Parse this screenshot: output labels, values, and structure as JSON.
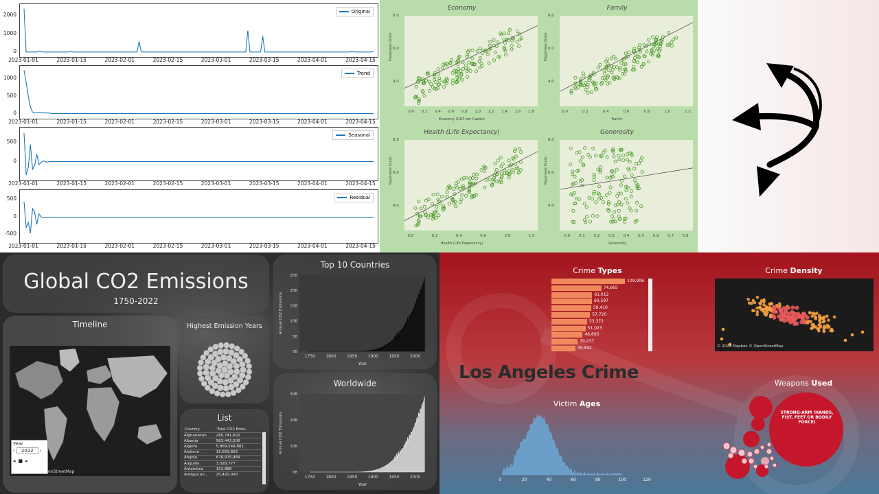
{
  "decomposition": {
    "x_ticks": [
      "2023-01-01",
      "2023-01-15",
      "2023-02-01",
      "2023-02-15",
      "2023-03-01",
      "2023-03-15",
      "2023-04-01",
      "2023-04-15"
    ],
    "panels": [
      {
        "name": "Original",
        "y_ticks": [
          "2000",
          "1000",
          "0"
        ],
        "ymin": -100,
        "ymax": 2500,
        "values": [
          2400,
          20,
          20,
          20,
          20,
          20,
          20,
          80,
          40,
          20,
          20,
          20,
          20,
          20,
          20,
          20,
          20,
          20,
          20,
          20,
          20,
          20,
          60,
          20,
          20,
          20,
          20,
          20,
          20,
          20,
          20,
          20,
          20,
          20,
          20,
          20,
          20,
          20,
          20,
          20,
          20,
          20,
          20,
          20,
          20,
          20,
          20,
          20,
          20,
          20,
          20,
          20,
          20,
          20,
          600,
          20,
          20,
          20,
          20,
          20,
          20,
          20,
          20,
          20,
          20,
          20,
          20,
          20,
          20,
          20,
          20,
          20,
          20,
          20,
          20,
          20,
          20,
          20,
          20,
          20,
          20,
          20,
          20,
          20,
          20,
          20,
          20,
          20,
          20,
          20,
          20,
          20,
          20,
          20,
          20,
          20,
          20,
          20,
          20,
          20,
          20,
          20,
          20,
          20,
          20,
          1200,
          20,
          20,
          20,
          20,
          20,
          20,
          900,
          20,
          20,
          20,
          20,
          20,
          20,
          20,
          20,
          20,
          20,
          20,
          20,
          20,
          20,
          20,
          20,
          20,
          20,
          20,
          20,
          20,
          20,
          20,
          20,
          20,
          20,
          20,
          20,
          20,
          20,
          20,
          20,
          20,
          20,
          20,
          20,
          20,
          20,
          20,
          20,
          20,
          60,
          20,
          20,
          20,
          20,
          20,
          20,
          20,
          20,
          20,
          60
        ]
      },
      {
        "name": "Trend",
        "y_ticks": [
          "1000",
          "500",
          "0"
        ],
        "ymin": -60,
        "ymax": 1300,
        "values": [
          1250,
          900,
          500,
          200,
          50,
          20,
          40,
          30,
          50,
          40,
          20,
          30,
          20,
          10,
          10,
          10,
          10,
          10,
          10,
          10,
          10,
          10,
          10,
          10,
          10,
          10,
          10,
          10,
          10,
          10,
          10,
          10,
          10,
          10,
          10,
          10,
          10,
          10,
          10,
          10,
          10,
          10,
          10,
          10,
          10,
          10,
          10,
          10,
          10,
          10,
          10,
          10,
          10,
          10,
          10,
          10,
          10,
          10,
          10,
          10,
          10,
          10,
          10,
          10,
          10,
          10,
          10,
          10,
          10,
          10,
          10,
          10,
          10,
          10,
          10,
          10,
          10,
          10,
          10,
          10,
          10,
          10,
          10,
          10,
          10,
          10,
          10,
          10,
          10,
          10,
          10,
          10,
          10,
          10,
          10,
          10,
          10,
          10,
          10,
          10,
          10,
          10,
          10,
          10,
          10,
          10,
          10,
          10,
          10,
          10,
          10,
          10,
          10,
          10,
          10,
          10,
          10,
          10,
          10,
          10,
          10,
          10,
          10,
          10,
          10,
          10,
          10,
          10,
          10,
          10,
          10,
          10,
          10,
          10,
          10,
          10,
          10,
          10,
          10,
          10,
          10,
          10,
          10,
          10,
          10,
          10,
          10,
          10,
          10,
          10,
          10,
          10,
          10,
          10,
          10,
          10,
          10,
          10,
          10,
          10,
          10,
          10,
          10,
          10,
          10
        ]
      },
      {
        "name": "Seasonal",
        "y_ticks": [
          "500",
          "0"
        ],
        "ymin": -420,
        "ymax": 820,
        "values": [
          750,
          -350,
          -150,
          450,
          -200,
          -100,
          200,
          -80,
          -20,
          20,
          0,
          -10,
          0,
          0,
          0,
          0,
          0,
          0,
          0,
          0,
          0,
          0,
          0,
          0,
          0,
          0,
          0,
          0,
          0,
          0,
          0,
          0,
          0,
          0,
          0,
          0,
          0,
          0,
          0,
          0,
          0,
          0,
          0,
          0,
          0,
          0,
          0,
          0,
          0,
          0,
          0,
          0,
          0,
          0,
          0,
          0,
          0,
          0,
          0,
          0,
          0,
          0,
          0,
          0,
          0,
          0,
          0,
          0,
          0,
          0,
          0,
          0,
          0,
          0,
          0,
          0,
          0,
          0,
          0,
          0,
          0,
          0,
          0,
          0,
          0,
          0,
          0,
          0,
          0,
          0,
          0,
          0,
          0,
          0,
          0,
          0,
          0,
          0,
          0,
          0,
          0,
          0,
          0,
          0,
          0,
          0,
          0,
          0,
          0,
          0,
          0,
          0,
          0,
          0,
          0,
          0,
          0,
          0,
          0,
          0,
          0,
          0,
          0,
          0,
          0,
          0,
          0,
          0,
          0,
          0,
          0,
          0,
          0,
          0,
          0,
          0,
          0,
          0,
          0,
          0,
          0,
          0,
          0,
          0,
          0,
          0,
          0,
          0,
          0,
          0,
          0,
          0,
          0,
          0,
          0,
          0,
          0,
          0,
          0,
          0,
          0,
          0,
          0,
          0,
          0
        ]
      },
      {
        "name": "Residual",
        "y_ticks": [
          "500",
          "0",
          "-500"
        ],
        "ymin": -650,
        "ymax": 700,
        "values": [
          450,
          -300,
          -150,
          -450,
          250,
          150,
          -200,
          100,
          20,
          -20,
          10,
          -10,
          10,
          0,
          0,
          0,
          0,
          0,
          0,
          0,
          0,
          0,
          0,
          0,
          0,
          0,
          0,
          0,
          0,
          0,
          0,
          0,
          0,
          0,
          0,
          0,
          0,
          0,
          0,
          0,
          0,
          0,
          0,
          0,
          0,
          0,
          0,
          0,
          0,
          0,
          0,
          0,
          0,
          0,
          0,
          0,
          0,
          0,
          0,
          0,
          0,
          0,
          0,
          0,
          0,
          0,
          0,
          0,
          0,
          0,
          0,
          0,
          0,
          0,
          0,
          0,
          0,
          0,
          0,
          0,
          0,
          0,
          0,
          0,
          0,
          0,
          0,
          0,
          0,
          0,
          0,
          0,
          0,
          0,
          0,
          0,
          0,
          0,
          0,
          0,
          0,
          0,
          0,
          0,
          0,
          0,
          0,
          0,
          0,
          0,
          0,
          0,
          0,
          0,
          0,
          0,
          0,
          0,
          0,
          0,
          0,
          0,
          0,
          0,
          0,
          0,
          0,
          0,
          0,
          0,
          0,
          0,
          0,
          0,
          0,
          0,
          0,
          0,
          0,
          0,
          0,
          0,
          0,
          0,
          0,
          0,
          0,
          0,
          0,
          0,
          0,
          0,
          0,
          0,
          0,
          0,
          0,
          0,
          0,
          0,
          0,
          0,
          0,
          0,
          0
        ]
      }
    ]
  },
  "scatter": [
    {
      "title": "Economy",
      "xlabel": "Economy (GDP per Capita)",
      "ylabel": "Happiness Score",
      "x_ticks": [
        "0.0",
        "0.2",
        "0.4",
        "0.6",
        "0.8",
        "1.0",
        "1.2",
        "1.4",
        "1.6",
        "1.8"
      ],
      "y_ticks": [
        "8.0",
        "6.0",
        "4.0"
      ],
      "xmin": -0.1,
      "xmax": 1.9,
      "ymin": 2.5,
      "ymax": 8.0
    },
    {
      "title": "Family",
      "xlabel": "Family",
      "ylabel": "Happiness Score",
      "x_ticks": [
        "0.0",
        "0.2",
        "0.4",
        "0.6",
        "0.8",
        "1.0",
        "1.2"
      ],
      "y_ticks": [
        "8.0",
        "6.0",
        "4.0"
      ],
      "xmin": -0.05,
      "xmax": 1.25,
      "ymin": 2.5,
      "ymax": 8.0
    },
    {
      "title": "Health (Life Expectancy)",
      "xlabel": "Health (Life Expectancy)",
      "ylabel": "Happiness Score",
      "x_ticks": [
        "0.0",
        "0.2",
        "0.4",
        "0.6",
        "0.8",
        "1.0"
      ],
      "y_ticks": [
        "8.0",
        "6.0",
        "4.0"
      ],
      "xmin": -0.05,
      "xmax": 1.05,
      "ymin": 2.5,
      "ymax": 8.0
    },
    {
      "title": "Generosity",
      "xlabel": "Generosity",
      "ylabel": "Happiness Score",
      "x_ticks": [
        "0.0",
        "0.1",
        "0.2",
        "0.3",
        "0.4",
        "0.5",
        "0.6",
        "0.7",
        "0.8"
      ],
      "y_ticks": [
        "8.0",
        "6.0",
        "4.0"
      ],
      "xmin": -0.05,
      "xmax": 0.85,
      "ymin": 2.5,
      "ymax": 8.0
    }
  ],
  "co2": {
    "title": "Global CO2 Emissions",
    "subtitle": "1750-2022",
    "timeline_title": "Timeline",
    "year_label": "Year",
    "year_value": "2022",
    "map_credit": "enStreetMap",
    "highest_title": "Highest Emission Years",
    "list_title": "List",
    "list_headers": [
      "Country",
      "Total CO2 Emis.."
    ],
    "list_rows": [
      [
        "Afghanistan",
        "280,741,602"
      ],
      [
        "Albania",
        "583,442,506"
      ],
      [
        "Algeria",
        "5,969,548,881"
      ],
      [
        "Andorra",
        "15,693,803"
      ],
      [
        "Angola",
        "678,975,489"
      ],
      [
        "Anguilla",
        "3,328,777"
      ],
      [
        "Antarctica",
        "153,888"
      ],
      [
        "Antigua an..",
        "25,420,000"
      ]
    ],
    "top10_title": "Top 10 Countries",
    "top10_ylabel": "Annual CO2 Emissions",
    "top10_yticks": [
      "25B",
      "20B",
      "15B",
      "10B",
      "5B",
      "0B"
    ],
    "worldwide_title": "Worldwide",
    "worldwide_ylabel": "Annual CO2 Emissions",
    "worldwide_yticks": [
      "30B",
      "20B",
      "10B",
      "0B"
    ],
    "x_ticks": [
      "1750",
      "1800",
      "1850",
      "1900",
      "1950",
      "2000"
    ],
    "xlabel": "Year"
  },
  "crime": {
    "title": "Los Angeles Crime",
    "types_title_a": "Crime ",
    "types_title_b": "Types",
    "density_title_a": "Crime ",
    "density_title_b": "Density",
    "map_credit": "© 2024 Mapbox © OpenStreetMap",
    "ages_title_a": "Victim ",
    "ages_title_b": "Ages",
    "weapons_title_a": "Weapons ",
    "weapons_title_b": "Used",
    "weapon_top": "STRONG-ARM (HANDS, FIST, FEET OR BODILY FORCE)",
    "age_ticks": [
      "0",
      "20",
      "40",
      "60",
      "80",
      "100",
      "120"
    ],
    "types": [
      {
        "label": "VEHICLE - STOLEN",
        "value": 109906,
        "text": "109,906"
      },
      {
        "label": "BATTERY - SIMPLE ASSAU..",
        "value": 74665,
        "text": "74,665"
      },
      {
        "label": "BURGLARY FROM VEHICLE",
        "value": 61012,
        "text": "61,012"
      },
      {
        "label": "THEFT OF IDENTITY",
        "value": 60597,
        "text": "60,597"
      },
      {
        "label": "VANDALISM - FELONY ($4..",
        "value": 59410,
        "text": "59,410"
      },
      {
        "label": "BURGLARY",
        "value": 57720,
        "text": "57,720"
      },
      {
        "label": "ASSAULT WITH DEADLY W..",
        "value": 53372,
        "text": "53,372"
      },
      {
        "label": "THEFT PLAIN - PETTY ($95..",
        "value": 51023,
        "text": "51,023"
      },
      {
        "label": "INTIMATE PARTNER - SIM..",
        "value": 46693,
        "text": "46,693"
      },
      {
        "label": "THEFT FROM MOTOR VEH..",
        "value": 39237,
        "text": "39,237"
      },
      {
        "label": "THEFT FROM MOTOR VEH..",
        "value": 35592,
        "text": "35,592"
      }
    ]
  }
}
